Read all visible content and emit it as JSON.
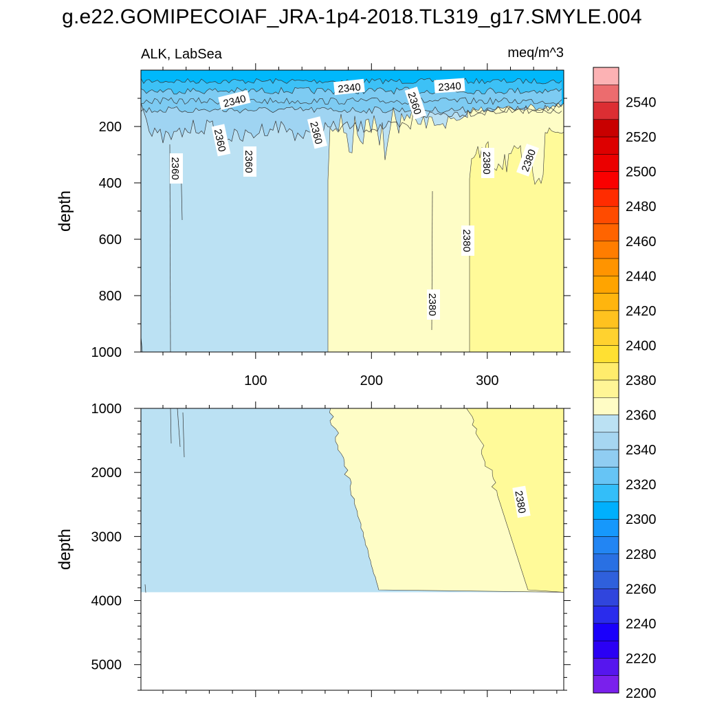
{
  "title": "g.e22.GOMIPECOIAF_JRA-1p4-2018.TL319_g17.SMYLE.004",
  "chart_data": {
    "type": "contour",
    "variable": "ALK, LabSea",
    "units": "meq/m^3",
    "x_range": [
      1,
      366
    ],
    "x_ticks": [
      "100",
      "200",
      "300"
    ],
    "ylabel": "depth",
    "top_panel": {
      "ylim": [
        1000,
        0
      ],
      "y_ticks": [
        "200",
        "400",
        "600",
        "800",
        "1000"
      ]
    },
    "bottom_panel": {
      "ylim": [
        5400,
        1000
      ],
      "y_ticks": [
        "1000",
        "2000",
        "3000",
        "4000",
        "5000"
      ],
      "data_bottom": 3870
    },
    "contour_labels": [
      "2340",
      "2340",
      "2340",
      "2360",
      "2360",
      "2360",
      "2360",
      "2360",
      "2380",
      "2380",
      "2380",
      "2380",
      "2380"
    ],
    "colorbar": {
      "levels": [
        2200,
        2220,
        2240,
        2260,
        2280,
        2300,
        2320,
        2340,
        2360,
        2380,
        2400,
        2420,
        2440,
        2460,
        2480,
        2500,
        2520,
        2540
      ],
      "tick_labels": [
        "2200",
        "2220",
        "2240",
        "2260",
        "2280",
        "2300",
        "2320",
        "2340",
        "2360",
        "2380",
        "2400",
        "2420",
        "2440",
        "2460",
        "2480",
        "2500",
        "2520",
        "2540"
      ],
      "colors": [
        "#fcb2b4",
        "#ec6c6e",
        "#dc2e33",
        "#c80000",
        "#dd0000",
        "#eb0000",
        "#fa0000",
        "#ff2c00",
        "#ff4b00",
        "#ff6400",
        "#ff7d00",
        "#ff9400",
        "#ffa400",
        "#ffb50e",
        "#ffc21f",
        "#ffd22f",
        "#ffe032",
        "#ffec6c",
        "#fff596",
        "#fffcc5",
        "#bbe1f3",
        "#a6d6f1",
        "#90cdf2",
        "#66c4f5",
        "#33bef9",
        "#00b0fd",
        "#1698fc",
        "#2285f3",
        "#2970e3",
        "#2f60dc",
        "#3045dd",
        "#2a2cec",
        "#1a00fb",
        "#2b00f4",
        "#5616ee",
        "#7a20ec"
      ]
    },
    "fill_colors": {
      "surface": "#00b8fb",
      "band_2330": "#3dc1f6",
      "band_2340": "#7dcbf2",
      "band_2350": "#9fd4f2",
      "band_2360": "#bbe1f3",
      "band_2370": "#fefdc6",
      "band_2380": "#fffa99"
    }
  }
}
